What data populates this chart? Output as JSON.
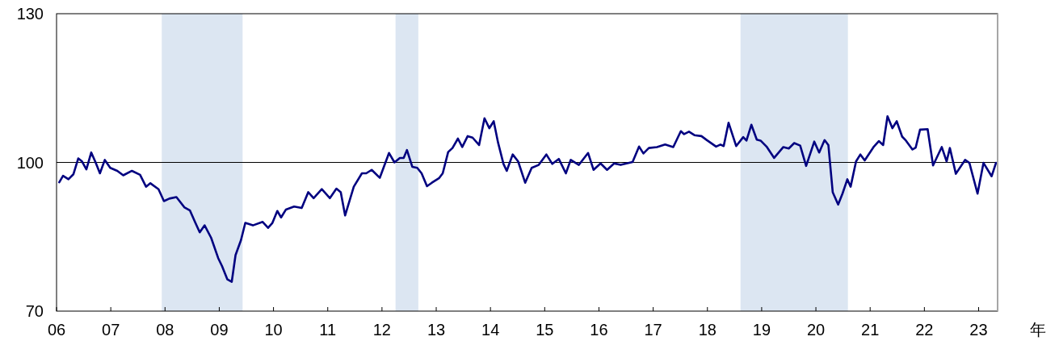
{
  "chart_data": {
    "type": "line",
    "x": [
      2006.05,
      2006.12,
      2006.22,
      2006.31,
      2006.4,
      2006.47,
      2006.55,
      2006.64,
      2006.72,
      2006.8,
      2006.89,
      2006.99,
      2007.12,
      2007.23,
      2007.39,
      2007.54,
      2007.65,
      2007.73,
      2007.88,
      2007.98,
      2008.08,
      2008.21,
      2008.36,
      2008.46,
      2008.56,
      2008.64,
      2008.73,
      2008.85,
      2008.98,
      2009.05,
      2009.15,
      2009.23,
      2009.3,
      2009.4,
      2009.48,
      2009.62,
      2009.8,
      2009.9,
      2009.98,
      2010.07,
      2010.14,
      2010.23,
      2010.38,
      2010.52,
      2010.64,
      2010.74,
      2010.89,
      2011.04,
      2011.16,
      2011.24,
      2011.32,
      2011.48,
      2011.63,
      2011.71,
      2011.81,
      2011.96,
      2012.13,
      2012.23,
      2012.33,
      2012.4,
      2012.46,
      2012.56,
      2012.65,
      2012.73,
      2012.83,
      2012.92,
      2013.05,
      2013.12,
      2013.22,
      2013.3,
      2013.4,
      2013.48,
      2013.58,
      2013.67,
      2013.79,
      2013.89,
      2013.98,
      2014.06,
      2014.14,
      2014.24,
      2014.3,
      2014.41,
      2014.51,
      2014.64,
      2014.76,
      2014.89,
      2015.03,
      2015.14,
      2015.26,
      2015.39,
      2015.48,
      2015.63,
      2015.8,
      2015.9,
      2016.03,
      2016.15,
      2016.28,
      2016.4,
      2016.62,
      2016.74,
      2016.82,
      2016.92,
      2017.07,
      2017.22,
      2017.37,
      2017.51,
      2017.57,
      2017.66,
      2017.76,
      2017.89,
      2017.99,
      2018.16,
      2018.24,
      2018.3,
      2018.39,
      2018.53,
      2018.66,
      2018.72,
      2018.81,
      2018.91,
      2018.98,
      2019.09,
      2019.23,
      2019.4,
      2019.5,
      2019.6,
      2019.71,
      2019.82,
      2019.97,
      2020.06,
      2020.16,
      2020.23,
      2020.31,
      2020.41,
      2020.49,
      2020.58,
      2020.64,
      2020.74,
      2020.82,
      2020.9,
      2021.07,
      2021.16,
      2021.24,
      2021.32,
      2021.41,
      2021.49,
      2021.59,
      2021.66,
      2021.78,
      2021.84,
      2021.92,
      2022.06,
      2022.16,
      2022.32,
      2022.41,
      2022.47,
      2022.58,
      2022.75,
      2022.83,
      2022.98,
      2023.09,
      2023.24,
      2023.32
    ],
    "series": [
      {
        "color": "#000080",
        "values": [
          96.0,
          97.3,
          96.6,
          97.6,
          100.8,
          100.2,
          98.6,
          102.0,
          100.0,
          97.8,
          100.5,
          98.9,
          98.3,
          97.4,
          98.3,
          97.5,
          95.1,
          95.8,
          94.6,
          92.2,
          92.7,
          93.0,
          90.9,
          90.3,
          87.8,
          85.9,
          87.3,
          84.8,
          80.7,
          79.1,
          76.4,
          75.9,
          81.3,
          84.3,
          87.8,
          87.3,
          88.0,
          86.8,
          87.8,
          90.2,
          88.9,
          90.5,
          91.1,
          90.8,
          94.0,
          92.8,
          94.6,
          92.8,
          94.7,
          94.0,
          89.3,
          95.1,
          97.8,
          97.8,
          98.5,
          96.9,
          101.9,
          100.0,
          100.9,
          100.9,
          102.5,
          99.1,
          98.9,
          97.8,
          95.2,
          95.9,
          96.8,
          97.8,
          102.1,
          102.9,
          104.8,
          103.1,
          105.3,
          105.0,
          103.5,
          108.9,
          106.9,
          108.3,
          104.0,
          99.7,
          98.3,
          101.6,
          100.2,
          95.9,
          98.9,
          99.5,
          101.6,
          99.7,
          100.7,
          97.8,
          100.5,
          99.5,
          101.9,
          98.5,
          99.8,
          98.5,
          99.8,
          99.5,
          100.1,
          103.2,
          101.8,
          102.9,
          103.1,
          103.6,
          103.1,
          106.3,
          105.7,
          106.2,
          105.5,
          105.3,
          104.5,
          103.2,
          103.6,
          103.3,
          108.0,
          103.3,
          105.1,
          104.4,
          107.6,
          104.6,
          104.4,
          103.2,
          100.9,
          103.1,
          102.8,
          103.9,
          103.4,
          99.3,
          104.2,
          102.0,
          104.5,
          103.5,
          94.0,
          91.5,
          93.7,
          96.6,
          95.1,
          100.2,
          101.6,
          100.4,
          103.2,
          104.3,
          103.5,
          109.3,
          106.9,
          108.3,
          105.2,
          104.4,
          102.6,
          103.0,
          106.6,
          106.7,
          99.4,
          103.1,
          100.2,
          102.9,
          97.7,
          100.5,
          99.9,
          93.7,
          99.9,
          97.2,
          99.9
        ]
      }
    ],
    "xlim": [
      2006,
      2023.35
    ],
    "xticks": [
      {
        "value": 2006,
        "label": "06"
      },
      {
        "value": 2007,
        "label": "07"
      },
      {
        "value": 2008,
        "label": "08"
      },
      {
        "value": 2009,
        "label": "09"
      },
      {
        "value": 2010,
        "label": "10"
      },
      {
        "value": 2011,
        "label": "11"
      },
      {
        "value": 2012,
        "label": "12"
      },
      {
        "value": 2013,
        "label": "13"
      },
      {
        "value": 2014,
        "label": "14"
      },
      {
        "value": 2015,
        "label": "15"
      },
      {
        "value": 2016,
        "label": "16"
      },
      {
        "value": 2017,
        "label": "17"
      },
      {
        "value": 2018,
        "label": "18"
      },
      {
        "value": 2019,
        "label": "19"
      },
      {
        "value": 2020,
        "label": "20"
      },
      {
        "value": 2021,
        "label": "21"
      },
      {
        "value": 2022,
        "label": "22"
      },
      {
        "value": 2023,
        "label": "23"
      }
    ],
    "ylim": [
      70,
      130
    ],
    "yticks": [
      70,
      100,
      130
    ],
    "xlabel": "年",
    "ref_lines": [
      {
        "axis": "y",
        "value": 100,
        "color": "#000000"
      }
    ],
    "bands": [
      {
        "axis": "x",
        "from": 2007.94,
        "to": 2009.43,
        "color": "#dce6f2"
      },
      {
        "axis": "x",
        "from": 2012.25,
        "to": 2012.67,
        "color": "#dce6f2"
      },
      {
        "axis": "x",
        "from": 2018.61,
        "to": 2020.59,
        "color": "#dce6f2"
      }
    ],
    "line_style": "solid"
  }
}
